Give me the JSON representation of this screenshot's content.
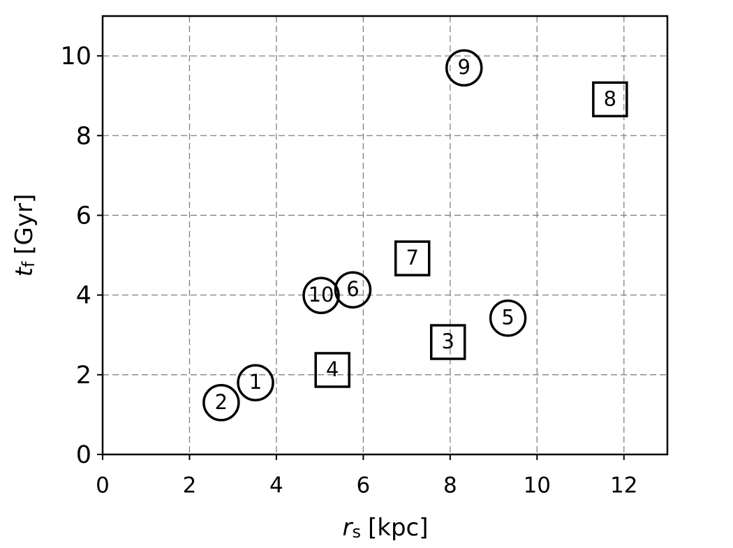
{
  "chart_data": {
    "type": "scatter",
    "xlabel": {
      "symbol": "r",
      "sub": "s",
      "unit": "[kpc]"
    },
    "ylabel": {
      "symbol": "t",
      "sub": "f",
      "unit": "[Gyr]"
    },
    "xlim": [
      0,
      13
    ],
    "ylim": [
      0,
      11
    ],
    "xticks": [
      0,
      2,
      4,
      6,
      8,
      10,
      12
    ],
    "yticks": [
      0,
      2,
      4,
      6,
      8,
      10
    ],
    "grid": true,
    "color": "#000000",
    "points": [
      {
        "label": "1",
        "x": 3.52,
        "y": 1.8,
        "marker": "circle"
      },
      {
        "label": "2",
        "x": 2.73,
        "y": 1.3,
        "marker": "circle"
      },
      {
        "label": "3",
        "x": 7.95,
        "y": 2.82,
        "marker": "square"
      },
      {
        "label": "4",
        "x": 5.29,
        "y": 2.12,
        "marker": "square"
      },
      {
        "label": "5",
        "x": 9.33,
        "y": 3.42,
        "marker": "circle"
      },
      {
        "label": "6",
        "x": 5.76,
        "y": 4.13,
        "marker": "circle"
      },
      {
        "label": "7",
        "x": 7.13,
        "y": 4.92,
        "marker": "square"
      },
      {
        "label": "8",
        "x": 11.68,
        "y": 8.91,
        "marker": "square"
      },
      {
        "label": "9",
        "x": 8.32,
        "y": 9.7,
        "marker": "circle"
      },
      {
        "label": "10",
        "x": 5.03,
        "y": 3.99,
        "marker": "circle"
      }
    ]
  }
}
